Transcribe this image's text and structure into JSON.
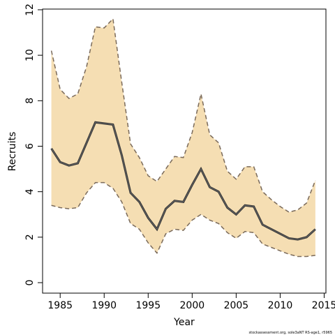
{
  "chart_data": {
    "type": "line_band",
    "x_label": "Year",
    "y_label": "Recruits",
    "footer": "stockassessment.org, sole3aNT RS-age1, r5965",
    "x": [
      1984,
      1985,
      1986,
      1987,
      1988,
      1989,
      1990,
      1991,
      1992,
      1993,
      1994,
      1995,
      1996,
      1997,
      1998,
      1999,
      2000,
      2001,
      2002,
      2003,
      2004,
      2005,
      2006,
      2007,
      2008,
      2009,
      2010,
      2011,
      2012,
      2013,
      2014
    ],
    "values": [
      5.9,
      5.3,
      5.15,
      5.25,
      6.15,
      7.05,
      7.0,
      6.95,
      5.6,
      3.95,
      3.55,
      2.85,
      2.35,
      3.25,
      3.6,
      3.55,
      4.3,
      5.0,
      4.2,
      4.0,
      3.3,
      3.0,
      3.4,
      3.35,
      2.55,
      2.35,
      2.15,
      1.95,
      1.9,
      2.0,
      2.35
    ],
    "upper": [
      10.2,
      8.5,
      8.1,
      8.3,
      9.5,
      11.25,
      11.2,
      11.6,
      8.8,
      6.1,
      5.5,
      4.7,
      4.45,
      5.0,
      5.55,
      5.5,
      6.6,
      8.3,
      6.5,
      6.15,
      4.9,
      4.55,
      5.1,
      5.1,
      4.0,
      3.65,
      3.35,
      3.1,
      3.2,
      3.5,
      4.5
    ],
    "lower": [
      3.4,
      3.3,
      3.25,
      3.3,
      3.95,
      4.4,
      4.4,
      4.15,
      3.55,
      2.6,
      2.35,
      1.75,
      1.3,
      2.15,
      2.35,
      2.3,
      2.75,
      3.0,
      2.75,
      2.6,
      2.2,
      1.95,
      2.25,
      2.2,
      1.7,
      1.55,
      1.4,
      1.25,
      1.15,
      1.15,
      1.2
    ],
    "color": "#333333",
    "band_color": "#f5deb3",
    "bound_color": "#7a6a5a",
    "xlim": [
      1983,
      2015.2
    ],
    "ylim": [
      -0.46,
      12.03
    ],
    "xticks": [
      1985,
      1990,
      1995,
      2000,
      2005,
      2010,
      2015
    ],
    "yticks": [
      0,
      2,
      4,
      6,
      8,
      10,
      12
    ]
  }
}
